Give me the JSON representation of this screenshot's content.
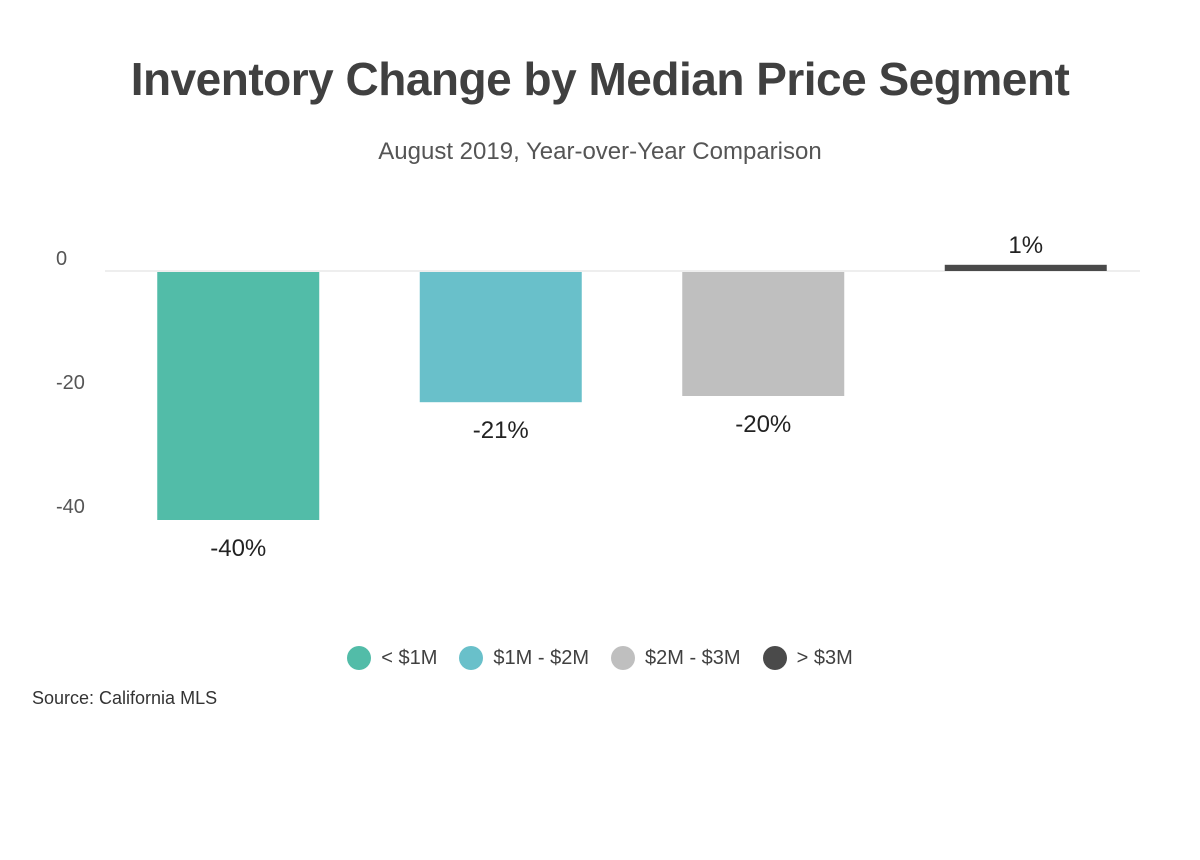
{
  "chart_data": {
    "type": "bar",
    "title": "Inventory Change by Median Price Segment",
    "subtitle": "August 2019, Year-over-Year Comparison",
    "xlabel": "",
    "ylabel": "",
    "categories": [
      "< $1M",
      "$1M - $2M",
      "$2M - $3M",
      "> $3M"
    ],
    "values": [
      -40,
      -21,
      -20,
      1
    ],
    "data_labels": [
      "-40%",
      "-21%",
      "-20%",
      "1%"
    ],
    "colors": [
      "#52bca8",
      "#69c0ca",
      "#bfbfbf",
      "#4a4a4a"
    ],
    "y_ticks": [
      0,
      -20,
      -40
    ],
    "y_tick_labels": [
      "0",
      "-20",
      "-40"
    ],
    "ylim": [
      -40,
      1
    ],
    "grid": false,
    "legend_position": "bottom"
  },
  "source": "Source:  California MLS"
}
